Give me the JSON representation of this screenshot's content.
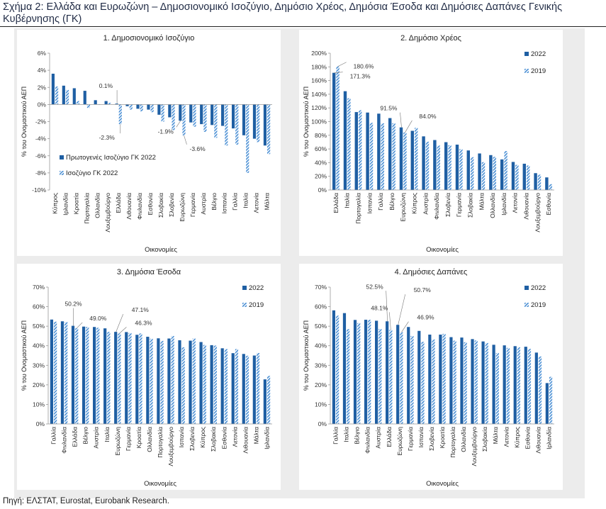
{
  "figure_title": "Σχήμα 2: Ελλάδα και Ευρωζώνη – Δημοσιονομικό Ισοζύγιο, Δημόσιο Χρέος, Δημόσια Έσοδα και Δημόσιες Δαπάνες Γενικής Κυβέρνησης (ΓΚ)",
  "source": "Πηγή: ΕΛΣΤΑΤ, Eurostat, Eurobank Research.",
  "colors": {
    "series1": "#1f5fa3",
    "series2": "#4a8fd4",
    "axis": "#888888",
    "text": "#333333"
  },
  "chart_data": [
    {
      "type": "bar",
      "title": "1. Δημοσιονομικό Ισοζύγιο",
      "xlabel": "Οικονομίες",
      "ylabel": "% του Ονομαστικού ΑΕΠ",
      "ylim": [
        -10,
        6
      ],
      "yticks": [
        "-10%",
        "-8%",
        "-6%",
        "-4%",
        "-2%",
        "0%",
        "2%",
        "4%",
        "6%"
      ],
      "legend_position": "bottom-left",
      "categories": [
        "Κύπρος",
        "Ιρλανδία",
        "Κροατία",
        "Πορτογαλία",
        "Ολλανδία",
        "Λουξεμβούργο",
        "Ελλάδα",
        "Λιθουανία",
        "Φινλανδία",
        "Εσθονία",
        "Σλοβακία",
        "Σλοβενία",
        "Ευρωζώνη",
        "Γερμανία",
        "Αυστρία",
        "Βέλγιο",
        "Ισπανία",
        "Γαλλία",
        "Ιταλία",
        "Λετονία",
        "Μάλτα"
      ],
      "series": [
        {
          "name": "Πρωτογενές Ισοζύγιο ΓΚ 2022",
          "values": [
            3.6,
            2.2,
            1.9,
            1.6,
            0.5,
            0.4,
            0.1,
            -0.2,
            -0.5,
            -0.6,
            -1.2,
            -1.5,
            -1.9,
            -2.1,
            -2.3,
            -2.4,
            -2.5,
            -2.8,
            -3.6,
            -4.0,
            -4.8
          ]
        },
        {
          "name": "Ισοζύγιο ΓΚ 2022",
          "values": [
            2.1,
            1.7,
            0.4,
            -0.4,
            0.0,
            0.2,
            -2.3,
            -0.6,
            -0.8,
            -0.9,
            -2.0,
            -3.0,
            -3.6,
            -2.6,
            -3.2,
            -3.9,
            -4.8,
            -4.7,
            -8.0,
            -4.4,
            -5.8
          ]
        }
      ],
      "annotations": [
        {
          "label": "0.1%",
          "category": "Ελλάδα",
          "series": 0
        },
        {
          "label": "-2.3%",
          "category": "Ελλάδα",
          "series": 1
        },
        {
          "label": "-1.9%",
          "category": "Ευρωζώνη",
          "series": 0
        },
        {
          "label": "-3.6%",
          "category": "Ευρωζώνη",
          "series": 1
        }
      ]
    },
    {
      "type": "bar",
      "title": "2. Δημόσιο Χρέος",
      "xlabel": "Οικονομίες",
      "ylabel": "% του Ονομαστικού ΑΕΠ",
      "ylim": [
        0,
        200
      ],
      "yticks": [
        "0%",
        "20%",
        "40%",
        "60%",
        "80%",
        "100%",
        "120%",
        "140%",
        "160%",
        "180%",
        "200%"
      ],
      "legend_position": "top-right",
      "categories": [
        "Ελλάδα",
        "Ιταλία",
        "Πορτογαλία",
        "Ισπανία",
        "Γαλλία",
        "Βέλγιο",
        "Ευρωζώνη",
        "Κύπρος",
        "Αυστρία",
        "Φινλανδία",
        "Σλοβενία",
        "Γερμανία",
        "Σλοβακία",
        "Μάλτα",
        "Ολλανδία",
        "Ιρλανδία",
        "Λετονία",
        "Λιθουανία",
        "Λουξεμβούργο",
        "Εσθονία"
      ],
      "series": [
        {
          "name": "2022",
          "values": [
            171.3,
            144.4,
            113.9,
            113.2,
            111.6,
            105.1,
            91.5,
            86.5,
            78.4,
            73.0,
            69.9,
            66.3,
            57.8,
            53.4,
            51.0,
            44.7,
            41.0,
            38.4,
            24.6,
            18.4
          ]
        },
        {
          "name": "2019",
          "values": [
            180.6,
            134.1,
            116.6,
            98.2,
            97.4,
            97.6,
            84.0,
            90.8,
            70.6,
            64.9,
            65.4,
            59.6,
            48.0,
            40.7,
            48.5,
            57.0,
            36.7,
            35.8,
            22.4,
            8.5
          ]
        }
      ],
      "annotations": [
        {
          "label": "180.6%",
          "category": "Ελλάδα",
          "series": 1
        },
        {
          "label": "171.3%",
          "category": "Ελλάδα",
          "series": 0
        },
        {
          "label": "91.5%",
          "category": "Ευρωζώνη",
          "series": 0
        },
        {
          "label": "84.0%",
          "category": "Ευρωζώνη",
          "series": 1
        }
      ]
    },
    {
      "type": "bar",
      "title": "3. Δημόσια Έσοδα",
      "xlabel": "Οικονομίες",
      "ylabel": "% του Ονομαστικού ΑΕΠ",
      "ylim": [
        0,
        70
      ],
      "yticks": [
        "0%",
        "10%",
        "20%",
        "30%",
        "40%",
        "50%",
        "60%",
        "70%"
      ],
      "legend_position": "top-right",
      "categories": [
        "Γαλλία",
        "Φινλανδία",
        "Ελλάδα",
        "Βέλγιο",
        "Αυστρία",
        "Ιταλία",
        "Ευρωζώνη",
        "Γερμανία",
        "Κροατία",
        "Ολλανδία",
        "Πορτογαλία",
        "Λουξεμβούργο",
        "Ισπανία",
        "Σλοβενία",
        "Κύπρος",
        "Σλοβακία",
        "Εσθονία",
        "Λετονία",
        "Λιθουανία",
        "Μάλτα",
        "Ιρλανδία"
      ],
      "series": [
        {
          "name": "2022",
          "values": [
            53.4,
            52.5,
            50.2,
            49.8,
            49.6,
            48.9,
            47.1,
            47.0,
            45.6,
            44.6,
            43.8,
            43.7,
            42.8,
            42.6,
            41.9,
            40.3,
            38.7,
            36.2,
            35.8,
            35.0,
            22.8
          ]
        },
        {
          "name": "2019",
          "values": [
            52.3,
            52.1,
            49.0,
            49.6,
            49.2,
            47.1,
            46.3,
            46.5,
            46.3,
            43.6,
            42.5,
            45.0,
            39.2,
            43.7,
            40.4,
            40.1,
            38.3,
            38.3,
            34.9,
            36.3,
            24.6
          ]
        }
      ],
      "annotations": [
        {
          "label": "50.2%",
          "category": "Ελλάδα",
          "series": 0
        },
        {
          "label": "49.0%",
          "category": "Ελλάδα",
          "series": 1
        },
        {
          "label": "47.1%",
          "category": "Ευρωζώνη",
          "series": 0
        },
        {
          "label": "46.3%",
          "category": "Ευρωζώνη",
          "series": 1
        }
      ]
    },
    {
      "type": "bar",
      "title": "4. Δημόσιες Δαπάνες",
      "xlabel": "Οικονομίες",
      "ylabel": "% του Ονομαστικού ΑΕΠ",
      "ylim": [
        0,
        70
      ],
      "yticks": [
        "0%",
        "10%",
        "20%",
        "30%",
        "40%",
        "50%",
        "60%",
        "70%"
      ],
      "legend_position": "top-right",
      "categories": [
        "Γαλλία",
        "Ιταλία",
        "Βέλγιο",
        "Φινλανδία",
        "Αυστρία",
        "Ελλάδα",
        "Ευρωζώνη",
        "Γερμανία",
        "Ισπανία",
        "Σλοβενία",
        "Κροατία",
        "Πορτογαλία",
        "Ολλανδία",
        "Λουξεμβούργο",
        "Σλοβακία",
        "Μάλτα",
        "Λετονία",
        "Κύπρος",
        "Εσθονία",
        "Λιθουανία",
        "Ιρλανδία"
      ],
      "series": [
        {
          "name": "2022",
          "values": [
            58.1,
            56.7,
            53.2,
            53.3,
            52.8,
            52.5,
            50.7,
            49.6,
            47.6,
            45.7,
            45.7,
            44.4,
            44.2,
            43.4,
            42.2,
            40.5,
            40.2,
            39.8,
            39.5,
            36.5,
            20.9
          ]
        },
        {
          "name": "2019",
          "values": [
            55.4,
            48.5,
            51.6,
            53.3,
            48.6,
            48.1,
            46.9,
            45.0,
            42.0,
            43.2,
            46.1,
            42.6,
            41.8,
            42.7,
            41.4,
            36.3,
            38.9,
            39.2,
            38.4,
            34.5,
            24.1
          ]
        }
      ],
      "annotations": [
        {
          "label": "52.5%",
          "category": "Ελλάδα",
          "series": 0
        },
        {
          "label": "48.1%",
          "category": "Ελλάδα",
          "series": 1
        },
        {
          "label": "50.7%",
          "category": "Ευρωζώνη",
          "series": 0
        },
        {
          "label": "46.9%",
          "category": "Ευρωζώνη",
          "series": 1
        }
      ]
    }
  ]
}
